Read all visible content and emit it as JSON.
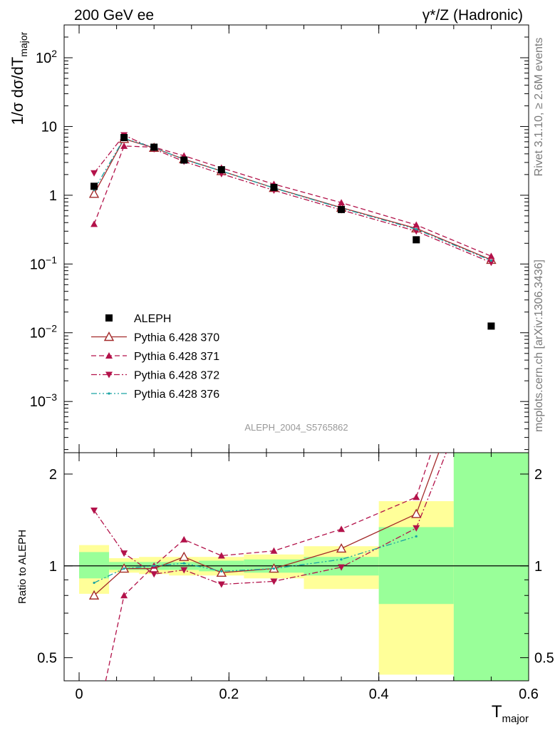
{
  "header": {
    "left": "200 GeV ee",
    "right": "γ*/Z (Hadronic)"
  },
  "side_text": {
    "rivet": "Rivet 3.1.10, ≥ 2.6M events",
    "mcplots": "mcplots.cern.ch [arXiv:1306.3436]"
  },
  "analysis_id": "ALEPH_2004_S5765862",
  "chart_data": [
    {
      "type": "line",
      "yscale": "log",
      "ylabel": "1/σ  dσ/dT",
      "ylabel_sub": "major",
      "ylim": [
        0.00018,
        300
      ],
      "xlim": [
        -0.02,
        0.6
      ],
      "y_ticks": [
        {
          "value": 0.001,
          "base": "10",
          "exp": "−3"
        },
        {
          "value": 0.01,
          "base": "10",
          "exp": "−2"
        },
        {
          "value": 0.1,
          "base": "10",
          "exp": "−1"
        },
        {
          "value": 1,
          "base": "1",
          "exp": ""
        },
        {
          "value": 10,
          "base": "10",
          "exp": ""
        },
        {
          "value": 100,
          "base": "10",
          "exp": "2"
        }
      ],
      "legend_position": "bottom-left",
      "data": {
        "name": "ALEPH",
        "x": [
          0.02,
          0.06,
          0.1,
          0.14,
          0.19,
          0.26,
          0.35,
          0.45,
          0.55
        ],
        "y": [
          1.35,
          6.9,
          5.0,
          3.25,
          2.35,
          1.3,
          0.62,
          0.225,
          0.0125
        ]
      },
      "series": [
        {
          "name": "Pythia 6.428 370",
          "color": "#a32a2a",
          "style": "solid",
          "marker": "open-triangle-up",
          "x": [
            0.02,
            0.06,
            0.1,
            0.14,
            0.19,
            0.26,
            0.35,
            0.45,
            0.55
          ],
          "y": [
            1.05,
            6.6,
            4.9,
            3.35,
            2.25,
            1.28,
            0.66,
            0.33,
            0.115
          ]
        },
        {
          "name": "Pythia 6.428 371",
          "color": "#b3124a",
          "style": "dashed",
          "marker": "filled-triangle-up",
          "x": [
            0.02,
            0.06,
            0.1,
            0.14,
            0.19,
            0.26,
            0.35,
            0.45,
            0.55
          ],
          "y": [
            0.38,
            5.2,
            5.0,
            3.75,
            2.5,
            1.45,
            0.78,
            0.37,
            0.13
          ]
        },
        {
          "name": "Pythia 6.428 372",
          "color": "#b3124a",
          "style": "dashdot",
          "marker": "filled-triangle-down",
          "x": [
            0.02,
            0.06,
            0.1,
            0.14,
            0.19,
            0.26,
            0.35,
            0.45,
            0.55
          ],
          "y": [
            2.1,
            7.5,
            4.7,
            3.1,
            2.05,
            1.18,
            0.61,
            0.3,
            0.105
          ]
        },
        {
          "name": "Pythia 6.428 376",
          "color": "#1aa3a3",
          "style": "dashdotdot",
          "marker": "small-dot",
          "x": [
            0.02,
            0.06,
            0.1,
            0.14,
            0.19,
            0.26,
            0.35,
            0.45,
            0.55
          ],
          "y": [
            1.2,
            6.7,
            4.95,
            3.3,
            2.25,
            1.27,
            0.65,
            0.32,
            0.112
          ]
        }
      ]
    },
    {
      "type": "line",
      "yscale": "log",
      "xlabel": "T",
      "xlabel_sub": "major",
      "ylabel": "Ratio to ALEPH",
      "ylim": [
        0.42,
        2.35
      ],
      "xlim": [
        -0.02,
        0.6
      ],
      "x_ticks": [
        0,
        0.2,
        0.4,
        0.6
      ],
      "x_tick_labels": [
        "0",
        "0.2",
        "0.4",
        "0.6"
      ],
      "y_ticks": [
        0.5,
        1,
        2
      ],
      "y_tick_labels": [
        "0.5",
        "1",
        "2"
      ],
      "reference_line": 1,
      "bands": [
        {
          "x0": 0.0,
          "x1": 0.04,
          "inner": [
            0.91,
            1.11
          ],
          "outer": [
            0.81,
            1.17
          ]
        },
        {
          "x0": 0.04,
          "x1": 0.08,
          "inner": [
            0.97,
            1.03
          ],
          "outer": [
            0.95,
            1.06
          ]
        },
        {
          "x0": 0.08,
          "x1": 0.12,
          "inner": [
            0.97,
            1.03
          ],
          "outer": [
            0.94,
            1.07
          ]
        },
        {
          "x0": 0.12,
          "x1": 0.16,
          "inner": [
            0.97,
            1.03
          ],
          "outer": [
            0.93,
            1.07
          ]
        },
        {
          "x0": 0.16,
          "x1": 0.22,
          "inner": [
            0.96,
            1.04
          ],
          "outer": [
            0.93,
            1.07
          ]
        },
        {
          "x0": 0.22,
          "x1": 0.3,
          "inner": [
            0.95,
            1.05
          ],
          "outer": [
            0.91,
            1.09
          ]
        },
        {
          "x0": 0.3,
          "x1": 0.4,
          "inner": [
            0.93,
            1.07
          ],
          "outer": [
            0.84,
            1.16
          ]
        },
        {
          "x0": 0.4,
          "x1": 0.5,
          "inner": [
            0.75,
            1.34
          ],
          "outer": [
            0.44,
            1.63
          ]
        },
        {
          "x0": 0.5,
          "x1": 0.6,
          "inner": [
            0.42,
            2.35
          ],
          "outer": [
            0.42,
            2.35
          ]
        }
      ],
      "band_colors": {
        "inner": "#99ff99",
        "outer": "#ffff99"
      },
      "series": [
        {
          "name": "Pythia 6.428 370",
          "x": [
            0.02,
            0.06,
            0.1,
            0.14,
            0.19,
            0.26,
            0.35,
            0.45,
            0.48
          ],
          "y": [
            0.8,
            0.98,
            0.98,
            1.07,
            0.95,
            0.98,
            1.14,
            1.48,
            2.35
          ]
        },
        {
          "name": "Pythia 6.428 371",
          "x": [
            0.02,
            0.06,
            0.1,
            0.14,
            0.19,
            0.26,
            0.35,
            0.45,
            0.47
          ],
          "y": [
            0.28,
            0.8,
            1.0,
            1.22,
            1.08,
            1.12,
            1.32,
            1.68,
            2.35
          ]
        },
        {
          "name": "Pythia 6.428 372",
          "x": [
            0.02,
            0.06,
            0.1,
            0.14,
            0.19,
            0.26,
            0.35,
            0.45,
            0.49
          ],
          "y": [
            1.52,
            1.1,
            0.94,
            0.97,
            0.87,
            0.89,
            0.99,
            1.33,
            2.35
          ]
        },
        {
          "name": "Pythia 6.428 376",
          "x": [
            0.02,
            0.06,
            0.1,
            0.14,
            0.19,
            0.26,
            0.35,
            0.45
          ],
          "y": [
            0.88,
            0.98,
            1.0,
            1.02,
            0.96,
            0.98,
            1.05,
            1.25
          ]
        }
      ]
    }
  ]
}
